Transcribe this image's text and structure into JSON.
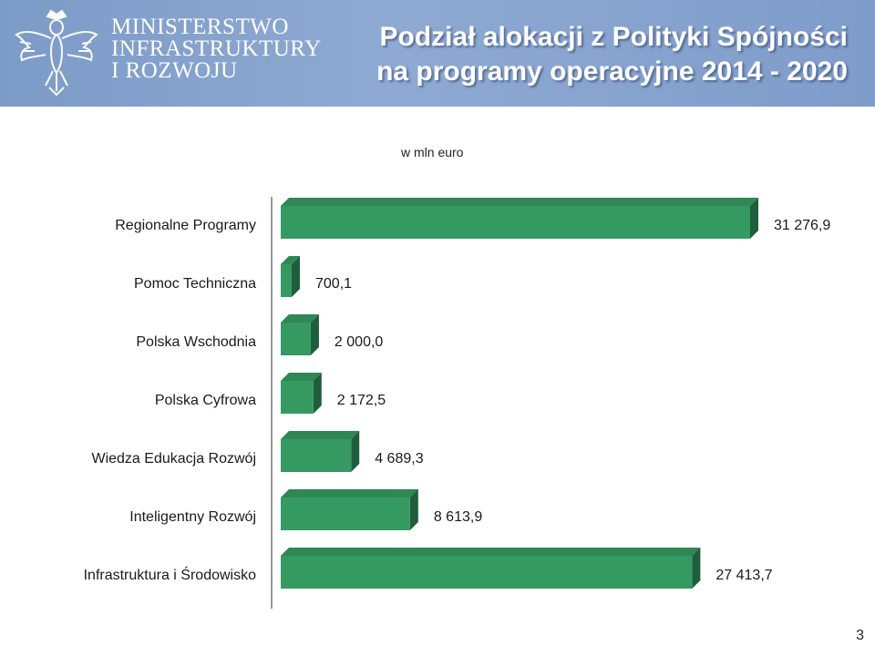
{
  "header": {
    "ministry_lines": [
      "MINISTERSTWO",
      "INFRASTRUKTURY",
      "I ROZWOJU"
    ],
    "title_line1": "Podział alokacji z Polityki Spójności",
    "title_line2": "na programy operacyjne 2014 - 2020"
  },
  "unit_label": "w mln euro",
  "page_number": "3",
  "colors": {
    "header_bg": "#8aa7d0",
    "bar_front": "#359962",
    "bar_top": "#2f8755",
    "bar_side": "#1f5e3a"
  },
  "chart_data": {
    "type": "bar",
    "orientation": "horizontal",
    "categories": [
      "Regionalne Programy",
      "Pomoc Techniczna",
      "Polska Wschodnia",
      "Polska Cyfrowa",
      "Wiedza Edukacja Rozwój",
      "Inteligentny Rozwój",
      "Infrastruktura i Środowisko"
    ],
    "values": [
      31276.9,
      700.1,
      2000.0,
      2172.5,
      4689.3,
      8613.9,
      27413.7
    ],
    "value_labels": [
      "31 276,9",
      "700,1",
      "2 000,0",
      "2 172,5",
      "4 689,3",
      "8 613,9",
      "27 413,7"
    ],
    "xlim": [
      0,
      31276.9
    ],
    "grid": false
  }
}
